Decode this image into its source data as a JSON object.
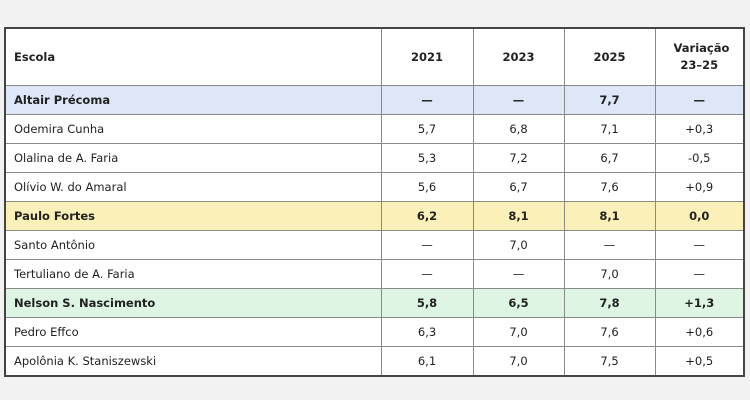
{
  "table": {
    "columns": [
      "Escola",
      "2021",
      "2023",
      "2025",
      "Variação 23–25"
    ],
    "rows": [
      [
        "Altair Précoma",
        "—",
        "—",
        "7,7",
        "—"
      ],
      [
        "Odemira Cunha",
        "5,7",
        "6,8",
        "7,1",
        "+0,3"
      ],
      [
        "Olalina de A. Faria",
        "5,3",
        "7,2",
        "6,7",
        "-0,5"
      ],
      [
        "Olívio W. do Amaral",
        "5,6",
        "6,7",
        "7,6",
        "+0,9"
      ],
      [
        "Paulo Fortes",
        "6,2",
        "8,1",
        "8,1",
        "0,0"
      ],
      [
        "Santo Antônio",
        "—",
        "7,0",
        "—",
        "—"
      ],
      [
        "Tertuliano de A. Faria",
        "—",
        "—",
        "7,0",
        "—"
      ],
      [
        "Nelson S. Nascimento",
        "5,8",
        "6,5",
        "7,8",
        "+1,3"
      ],
      [
        "Pedro Effco",
        "6,3",
        "7,0",
        "7,6",
        "+0,6"
      ],
      [
        "Apolônia K. Staniszewski",
        "6,1",
        "7,0",
        "7,5",
        "+0,5"
      ]
    ]
  }
}
